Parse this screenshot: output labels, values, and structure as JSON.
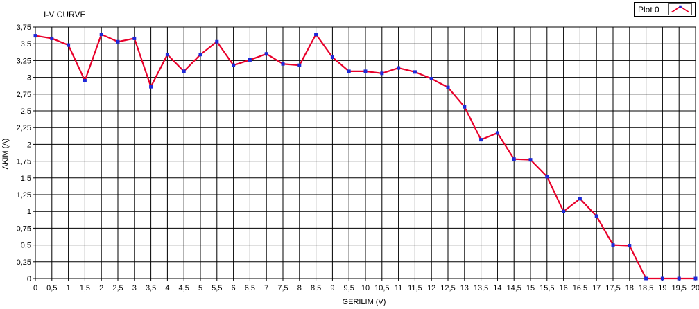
{
  "chart_data": {
    "type": "line",
    "title": "I-V CURVE",
    "xlabel": "GERILIM (V)",
    "ylabel": "AKIM (A)",
    "xlim": [
      0,
      20
    ],
    "ylim": [
      0,
      3.75
    ],
    "grid": true,
    "legend_position": "top-right",
    "x_tick_labels": [
      "0",
      "0,5",
      "1",
      "1,5",
      "2",
      "2,5",
      "3",
      "3,5",
      "4",
      "4,5",
      "5",
      "5,5",
      "6",
      "6,5",
      "7",
      "7,5",
      "8",
      "8,5",
      "9",
      "9,5",
      "10",
      "10,5",
      "11",
      "11,5",
      "12",
      "12,5",
      "13",
      "13,5",
      "14",
      "14,5",
      "15",
      "15,5",
      "16",
      "16,5",
      "17",
      "17,5",
      "18",
      "18,5",
      "19",
      "19,5",
      "20"
    ],
    "y_tick_labels": [
      "0",
      "0,25",
      "0,5",
      "0,75",
      "1",
      "1,25",
      "1,5",
      "1,75",
      "2",
      "2,25",
      "2,5",
      "2,75",
      "3",
      "3,25",
      "3,5",
      "3,75"
    ],
    "x": [
      0,
      0.5,
      1,
      1.5,
      2,
      2.5,
      3,
      3.5,
      4,
      4.5,
      5,
      5.5,
      6,
      6.5,
      7,
      7.5,
      8,
      8.5,
      9,
      9.5,
      10,
      10.5,
      11,
      11.5,
      12,
      12.5,
      13,
      13.5,
      14,
      14.5,
      15,
      15.5,
      16,
      16.5,
      17,
      17.5,
      18,
      18.5,
      19,
      19.5,
      20
    ],
    "series": [
      {
        "name": "Plot 0",
        "line_color": "#e8002a",
        "marker_color": "#1e28d8",
        "values": [
          3.62,
          3.58,
          3.48,
          2.95,
          3.64,
          3.53,
          3.58,
          2.86,
          3.34,
          3.09,
          3.34,
          3.53,
          3.18,
          3.26,
          3.35,
          3.2,
          3.18,
          3.64,
          3.3,
          3.09,
          3.09,
          3.06,
          3.14,
          3.08,
          2.98,
          2.85,
          2.56,
          2.07,
          2.17,
          1.78,
          1.77,
          1.52,
          1.0,
          1.19,
          0.93,
          0.5,
          0.49,
          0.0,
          0.0,
          0.0,
          0.0
        ]
      }
    ]
  }
}
